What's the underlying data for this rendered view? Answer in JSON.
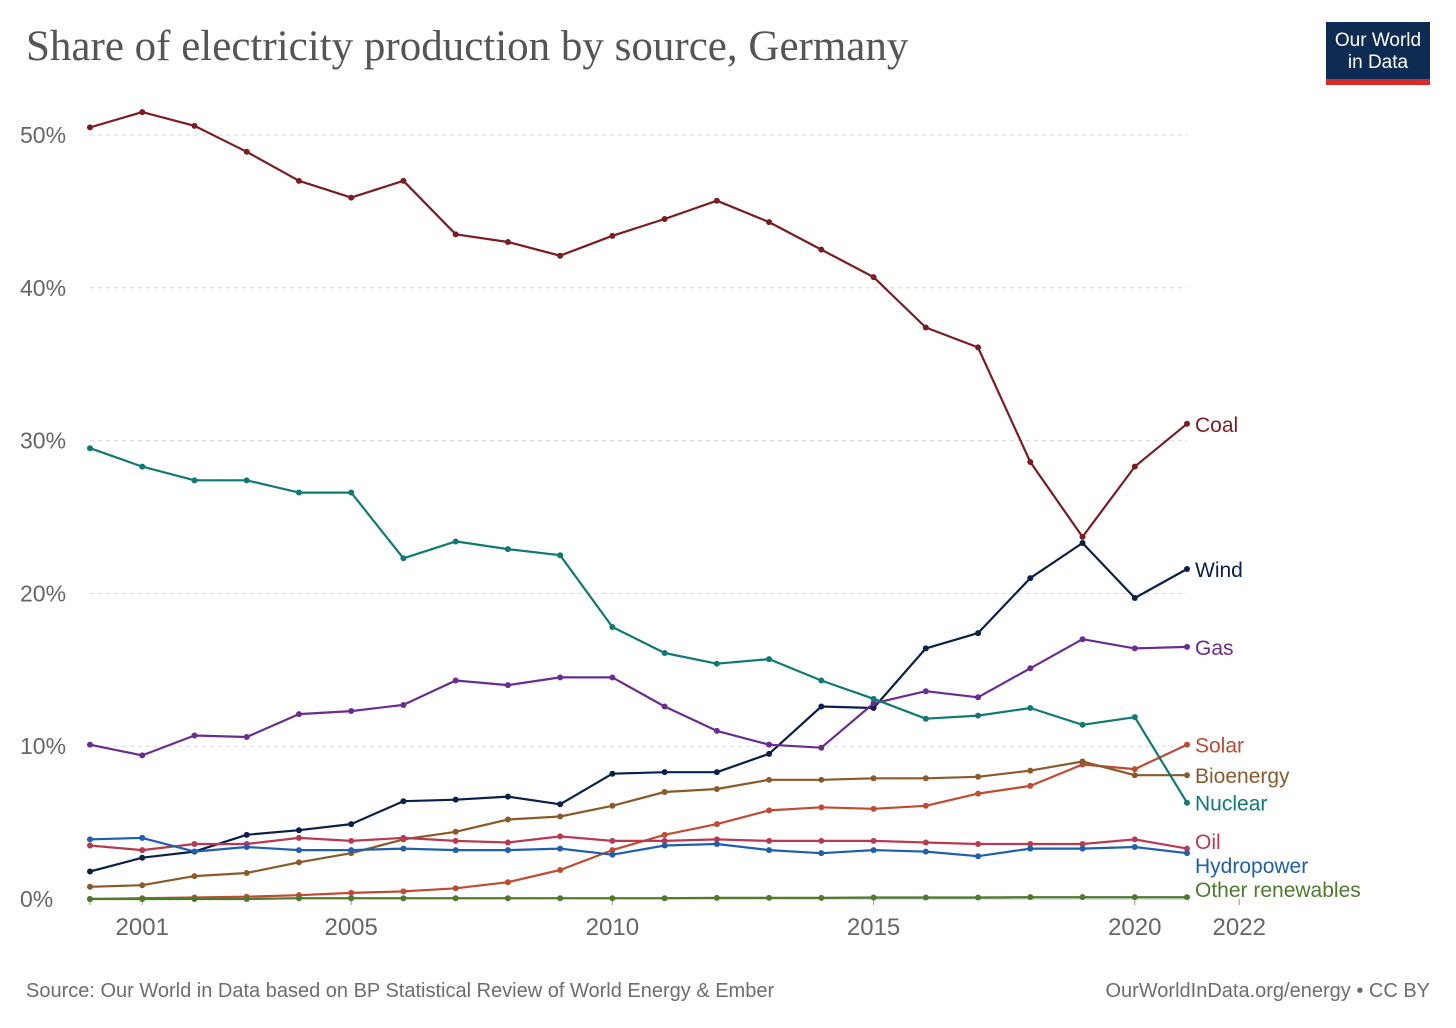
{
  "header": {
    "title": "Share of electricity production by source, Germany",
    "logo_line1": "Our World",
    "logo_line2": "in Data"
  },
  "footer": {
    "source": "Source: Our World in Data based on BP Statistical Review of World Energy & Ember",
    "link": "OurWorldInData.org/energy • CC BY"
  },
  "colors": {
    "logo_bg": "#0e2b53",
    "logo_bar": "#d42b2b",
    "grid": "#d8d8d8",
    "axis_text": "#666666"
  },
  "chart_data": {
    "type": "line",
    "title": "Share of electricity production by source, Germany",
    "x_ticks": [
      2001,
      2005,
      2010,
      2015,
      2020,
      2022
    ],
    "x_range": [
      2000,
      2021
    ],
    "y_ticks": [
      0,
      10,
      20,
      30,
      40,
      50
    ],
    "y_tick_labels": [
      "0%",
      "10%",
      "20%",
      "30%",
      "40%",
      "50%"
    ],
    "ylim": [
      0,
      50
    ],
    "grid": true,
    "legend": "right-end labels",
    "x": [
      2000,
      2001,
      2002,
      2003,
      2004,
      2005,
      2006,
      2007,
      2008,
      2009,
      2010,
      2011,
      2012,
      2013,
      2014,
      2015,
      2016,
      2017,
      2018,
      2019,
      2020,
      2021
    ],
    "series": [
      {
        "name": "Coal",
        "color": "#7a1d22",
        "values": [
          50.5,
          51.5,
          50.6,
          48.9,
          47.0,
          45.9,
          47.0,
          43.5,
          43.0,
          42.1,
          43.4,
          44.5,
          45.7,
          44.3,
          42.5,
          40.7,
          37.4,
          36.1,
          28.6,
          23.7,
          28.3,
          31.1
        ]
      },
      {
        "name": "Wind",
        "color": "#0b1f4b",
        "values": [
          1.8,
          2.7,
          3.1,
          4.2,
          4.5,
          4.9,
          6.4,
          6.5,
          6.7,
          6.2,
          8.2,
          8.3,
          8.3,
          9.5,
          12.6,
          12.5,
          16.4,
          17.4,
          21.0,
          23.3,
          19.7,
          21.6
        ]
      },
      {
        "name": "Gas",
        "color": "#6a2c8f",
        "values": [
          10.1,
          9.4,
          10.7,
          10.6,
          12.1,
          12.3,
          12.7,
          14.3,
          14.0,
          14.5,
          14.5,
          12.6,
          11.0,
          10.1,
          9.9,
          12.8,
          13.6,
          13.2,
          15.1,
          17.0,
          16.4,
          16.5
        ]
      },
      {
        "name": "Solar",
        "color": "#c04a32",
        "values": [
          0.0,
          0.05,
          0.1,
          0.15,
          0.25,
          0.4,
          0.5,
          0.7,
          1.1,
          1.9,
          3.2,
          4.2,
          4.9,
          5.8,
          6.0,
          5.9,
          6.1,
          6.9,
          7.4,
          8.8,
          8.5,
          10.1
        ]
      },
      {
        "name": "Bioenergy",
        "color": "#8a5a2b",
        "values": [
          0.8,
          0.9,
          1.5,
          1.7,
          2.4,
          3.0,
          3.9,
          4.4,
          5.2,
          5.4,
          6.1,
          7.0,
          7.2,
          7.8,
          7.8,
          7.9,
          7.9,
          8.0,
          8.4,
          9.0,
          8.1,
          8.1
        ]
      },
      {
        "name": "Nuclear",
        "color": "#0f7a73",
        "values": [
          29.5,
          28.3,
          27.4,
          27.4,
          26.6,
          26.6,
          22.3,
          23.4,
          22.9,
          22.5,
          17.8,
          16.1,
          15.4,
          15.7,
          14.3,
          13.1,
          11.8,
          12.0,
          12.5,
          11.4,
          11.9,
          6.3
        ]
      },
      {
        "name": "Oil",
        "color": "#b83a52",
        "values": [
          3.5,
          3.2,
          3.6,
          3.6,
          4.0,
          3.8,
          4.0,
          3.8,
          3.7,
          4.1,
          3.8,
          3.8,
          3.9,
          3.8,
          3.8,
          3.8,
          3.7,
          3.6,
          3.6,
          3.6,
          3.9,
          3.3
        ]
      },
      {
        "name": "Hydropower",
        "color": "#1f5fab",
        "values": [
          3.9,
          4.0,
          3.1,
          3.4,
          3.2,
          3.2,
          3.3,
          3.2,
          3.2,
          3.3,
          2.9,
          3.5,
          3.6,
          3.2,
          3.0,
          3.2,
          3.1,
          2.8,
          3.3,
          3.3,
          3.4,
          3.0
        ]
      },
      {
        "name": "Other renewables",
        "color": "#4e7a2e",
        "values": [
          0.0,
          0.0,
          0.0,
          0.0,
          0.05,
          0.05,
          0.05,
          0.05,
          0.05,
          0.05,
          0.05,
          0.05,
          0.07,
          0.07,
          0.07,
          0.1,
          0.1,
          0.1,
          0.12,
          0.12,
          0.12,
          0.12
        ]
      }
    ]
  }
}
